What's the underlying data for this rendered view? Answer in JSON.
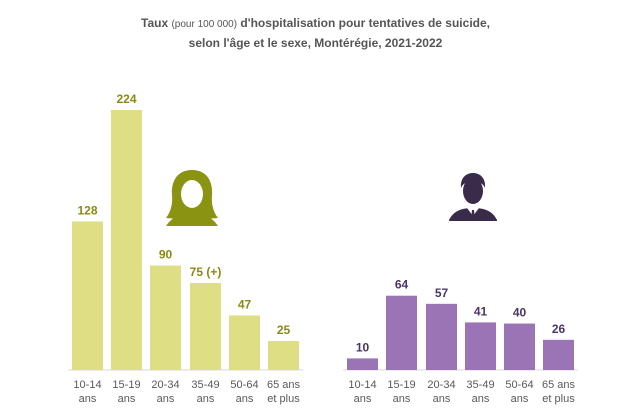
{
  "title": {
    "part1": "Taux",
    "part2": "(pour 100 000)",
    "part3": "d'hospitalisation pour tentatives de suicide,",
    "line2": "selon l'âge et le sexe, Montérégie, 2021-2022"
  },
  "colors": {
    "female": "#dede85",
    "female_label": "#8a8a12",
    "male": "#9a74b5",
    "male_label": "#4a3567",
    "female_icon": "#8a9412",
    "male_icon": "#3a2b4a"
  },
  "icons": {
    "female": "woman-icon",
    "male": "man-icon"
  },
  "chart_data": {
    "type": "bar",
    "categories": [
      [
        "10-14",
        "ans"
      ],
      [
        "15-19",
        "ans"
      ],
      [
        "20-34",
        "ans"
      ],
      [
        "35-49",
        "ans"
      ],
      [
        "50-64",
        "ans"
      ],
      [
        "65 ans",
        "et plus"
      ]
    ],
    "series": [
      {
        "name": "Femmes",
        "values": [
          128,
          224,
          90,
          75,
          47,
          25
        ],
        "labels": [
          "128",
          "224",
          "90",
          "75 (+)",
          "47",
          "25"
        ]
      },
      {
        "name": "Hommes",
        "values": [
          10,
          64,
          57,
          41,
          40,
          26
        ],
        "labels": [
          "10",
          "64",
          "57",
          "41",
          "40",
          "26"
        ]
      }
    ],
    "ylim": [
      0,
      224
    ]
  }
}
